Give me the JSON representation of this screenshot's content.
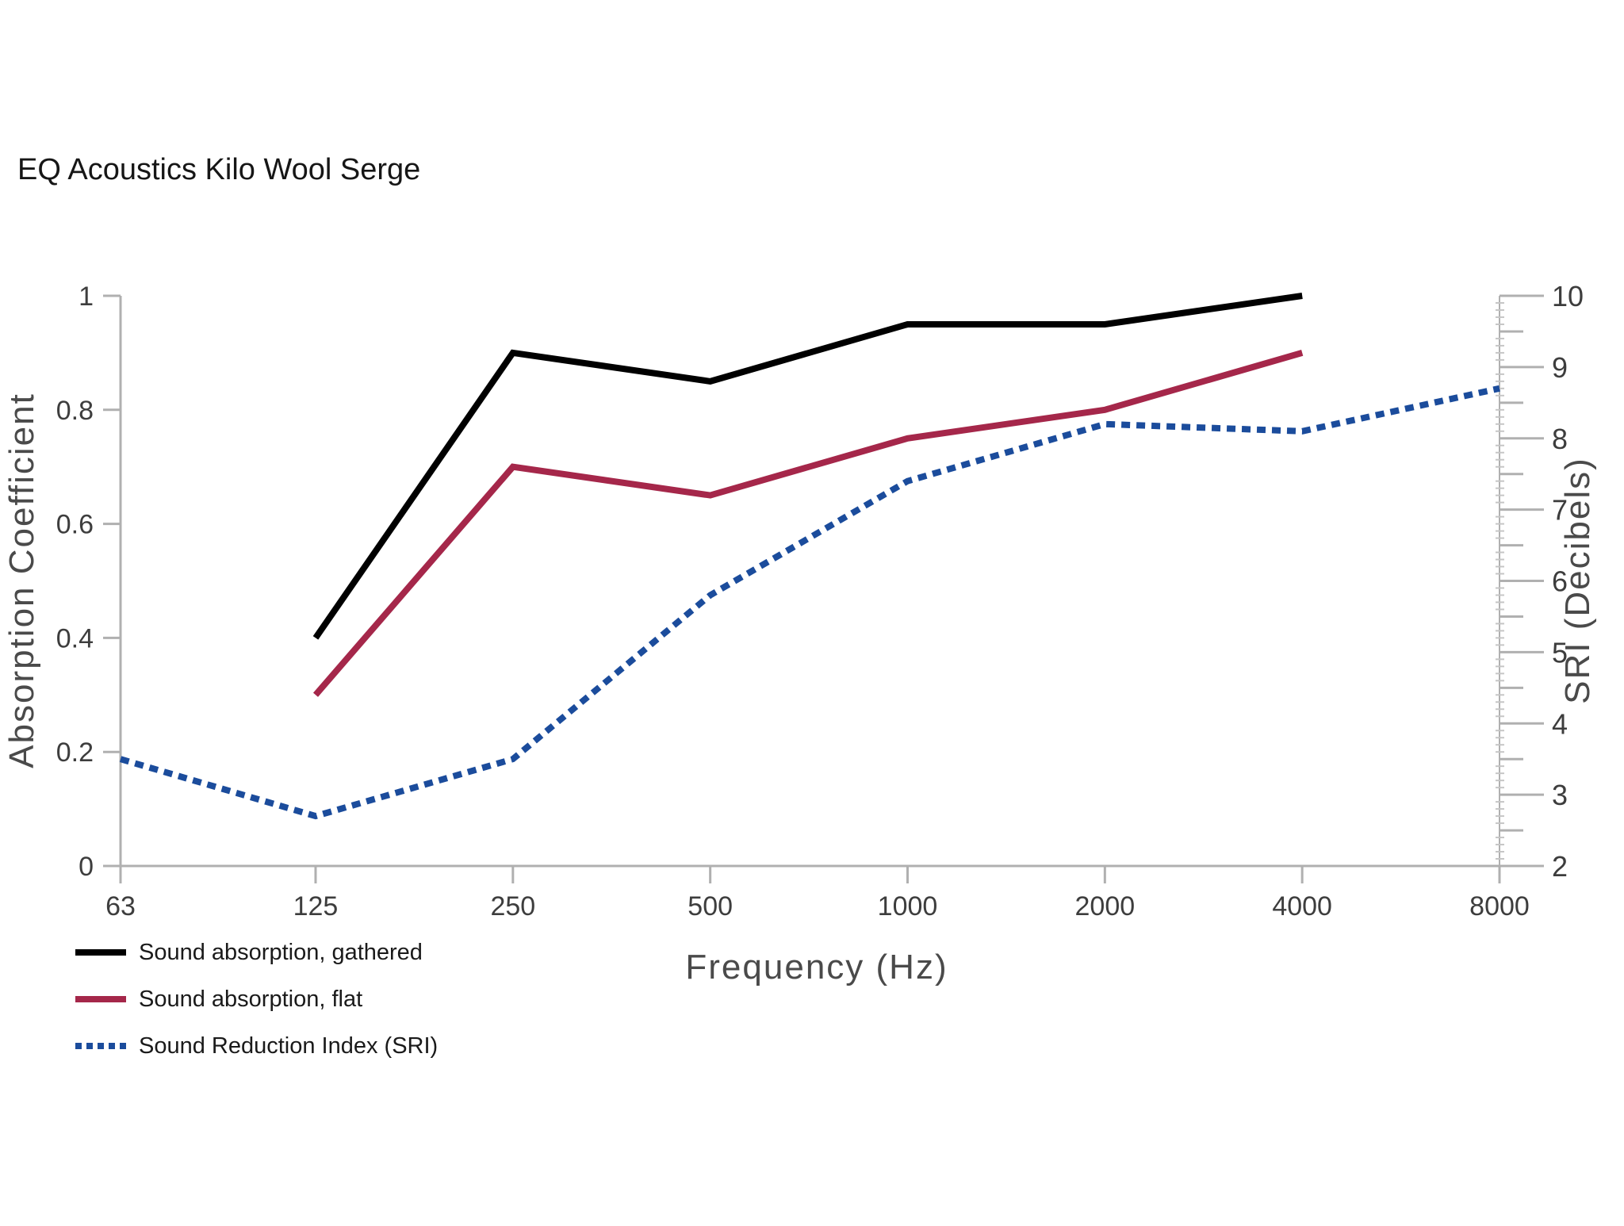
{
  "chart_data": {
    "type": "line",
    "title": "EQ Acoustics Kilo Wool Serge",
    "x_axis": {
      "label": "Frequency (Hz)",
      "scale": "log",
      "ticks": [
        63,
        125,
        250,
        500,
        1000,
        2000,
        4000,
        8000
      ]
    },
    "y_axis_left": {
      "label": "Absorption Coefficient",
      "min": 0,
      "max": 1,
      "ticks": [
        0,
        0.2,
        0.4,
        0.6,
        0.8,
        1
      ]
    },
    "y_axis_right": {
      "label": "SRI (Decibels)",
      "min": 2,
      "max": 10,
      "major_ticks": [
        2,
        3,
        4,
        5,
        6,
        7,
        8,
        9,
        10
      ],
      "medium_tick_step": 0.5,
      "minor_tick_step": 0.1
    },
    "series": [
      {
        "name": "Sound absorption, gathered",
        "axis": "left",
        "style": "solid",
        "color": "#000000",
        "points": [
          [
            125,
            0.4
          ],
          [
            250,
            0.9
          ],
          [
            500,
            0.85
          ],
          [
            1000,
            0.95
          ],
          [
            2000,
            0.95
          ],
          [
            4000,
            1.0
          ]
        ]
      },
      {
        "name": "Sound absorption, flat",
        "axis": "left",
        "style": "solid",
        "color": "#a5274a",
        "points": [
          [
            125,
            0.3
          ],
          [
            250,
            0.7
          ],
          [
            500,
            0.65
          ],
          [
            1000,
            0.75
          ],
          [
            2000,
            0.8
          ],
          [
            4000,
            0.9
          ]
        ]
      },
      {
        "name": "Sound Reduction Index (SRI)",
        "axis": "right",
        "style": "dotted",
        "color": "#1b4c9c",
        "points": [
          [
            63,
            3.5
          ],
          [
            125,
            2.7
          ],
          [
            250,
            3.5
          ],
          [
            500,
            5.8
          ],
          [
            1000,
            7.4
          ],
          [
            2000,
            8.2
          ],
          [
            4000,
            8.1
          ],
          [
            8000,
            8.7
          ]
        ]
      }
    ],
    "legend_position": "bottom-left",
    "grid": false,
    "colors": {
      "axis": "#b0b0b0",
      "minor_tick": "#c6c6c6",
      "tick_label": "#3d3d3d",
      "axis_title": "#4a4a4a",
      "title": "#161616"
    }
  }
}
